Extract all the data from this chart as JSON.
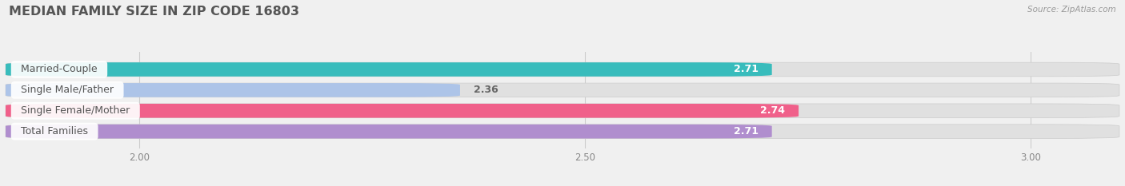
{
  "title": "MEDIAN FAMILY SIZE IN ZIP CODE 16803",
  "source": "Source: ZipAtlas.com",
  "categories": [
    "Married-Couple",
    "Single Male/Father",
    "Single Female/Mother",
    "Total Families"
  ],
  "values": [
    2.71,
    2.36,
    2.74,
    2.71
  ],
  "bar_colors": [
    "#38bcbc",
    "#adc4e8",
    "#f0608a",
    "#b08ece"
  ],
  "background_color": "#f0f0f0",
  "bar_bg_color": "#e0e0e0",
  "xlim_min": 1.85,
  "xlim_max": 3.1,
  "xticks": [
    2.0,
    2.5,
    3.0
  ],
  "value_label_color": "#ffffff",
  "value_label_outside_color": "#666666",
  "category_label_color": "#555555",
  "title_color": "#555555",
  "source_color": "#999999",
  "title_fontsize": 11.5,
  "bar_height": 0.68,
  "bar_gap": 0.15,
  "bar_value_fontsize": 9,
  "category_fontsize": 9,
  "tick_fontsize": 8.5,
  "grid_color": "#cccccc"
}
